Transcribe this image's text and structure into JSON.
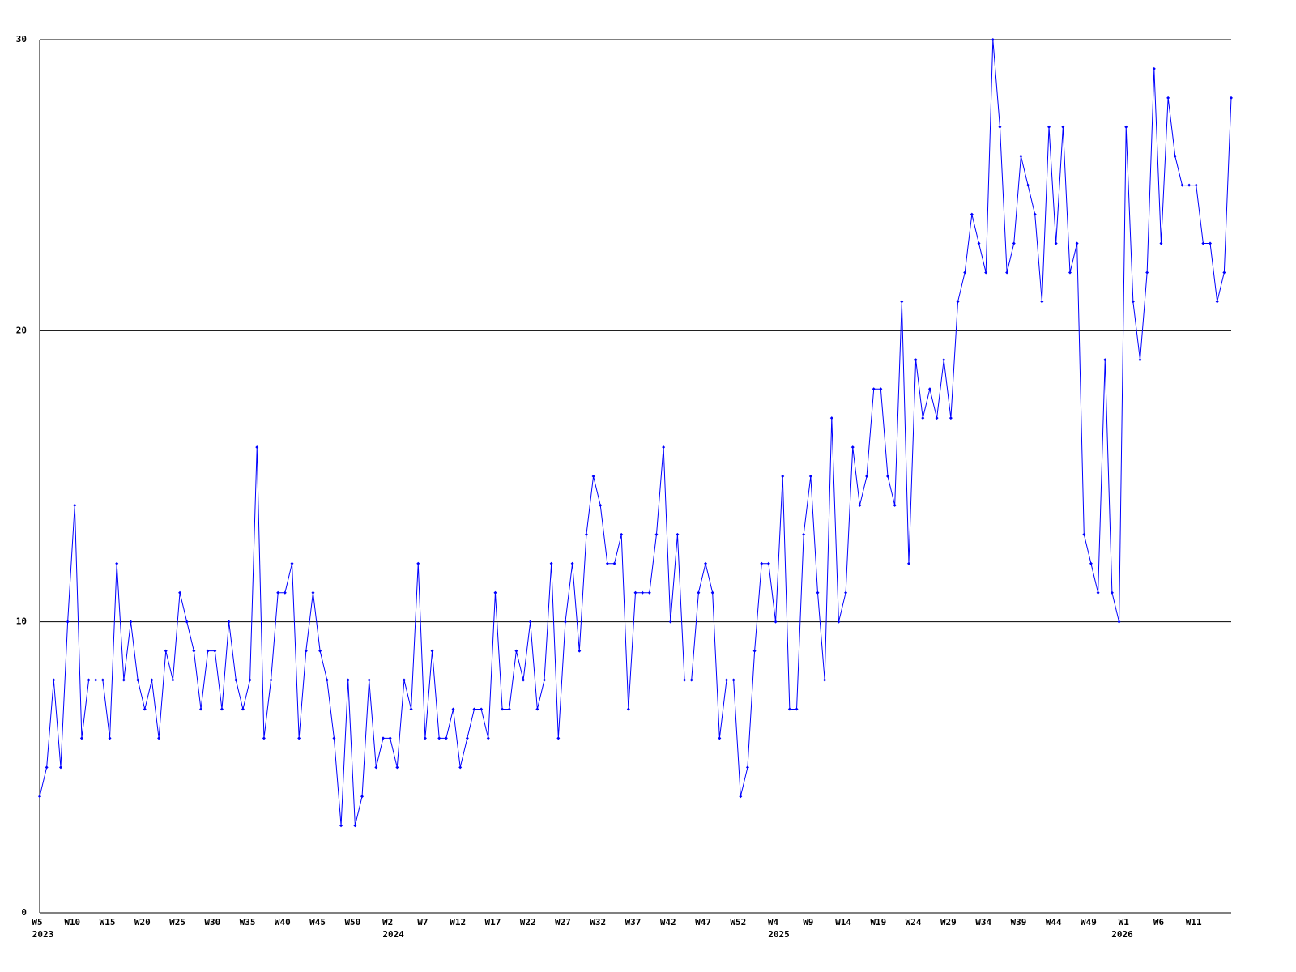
{
  "chart_data": {
    "type": "line",
    "color": "#0000ff",
    "grid": true,
    "ylim": [
      0,
      30
    ],
    "yticks": [
      0,
      10,
      20,
      30
    ],
    "categories": [
      "W5",
      null,
      null,
      null,
      null,
      "W10",
      null,
      null,
      null,
      null,
      "W15",
      null,
      null,
      null,
      null,
      "W20",
      null,
      null,
      null,
      null,
      "W25",
      null,
      null,
      null,
      null,
      "W30",
      null,
      null,
      null,
      null,
      "W35",
      null,
      null,
      null,
      null,
      "W40",
      null,
      null,
      null,
      null,
      "W45",
      null,
      null,
      null,
      null,
      "W50",
      null,
      null,
      null,
      null,
      "W2",
      null,
      null,
      null,
      null,
      "W7",
      null,
      null,
      null,
      null,
      "W12",
      null,
      null,
      null,
      null,
      "W17",
      null,
      null,
      null,
      null,
      "W22",
      null,
      null,
      null,
      null,
      "W27",
      null,
      null,
      null,
      null,
      "W32",
      null,
      null,
      null,
      null,
      "W37",
      null,
      null,
      null,
      null,
      "W42",
      null,
      null,
      null,
      null,
      "W47",
      null,
      null,
      null,
      null,
      "W52",
      null,
      null,
      null,
      null,
      "W4",
      null,
      null,
      null,
      null,
      "W9",
      null,
      null,
      null,
      null,
      "W14",
      null,
      null,
      null,
      null,
      "W19",
      null,
      null,
      null,
      null,
      "W24",
      null,
      null,
      null,
      null,
      "W29",
      null,
      null,
      null,
      null,
      "W34",
      null,
      null,
      null,
      null,
      "W39",
      null,
      null,
      null,
      null,
      "W44",
      null,
      null,
      null,
      null,
      "W49",
      null,
      null,
      null,
      null,
      "W1",
      null,
      null,
      null,
      null,
      "W6",
      null,
      null,
      null,
      null,
      "W11",
      null,
      null,
      null,
      null,
      null
    ],
    "category_years": [
      "2023",
      null,
      null,
      null,
      null,
      null,
      null,
      null,
      null,
      null,
      null,
      null,
      null,
      null,
      null,
      null,
      null,
      null,
      null,
      null,
      null,
      null,
      null,
      null,
      null,
      null,
      null,
      null,
      null,
      null,
      null,
      null,
      null,
      null,
      null,
      null,
      null,
      null,
      null,
      null,
      null,
      null,
      null,
      null,
      null,
      null,
      null,
      null,
      null,
      null,
      "2024",
      null,
      null,
      null,
      null,
      null,
      null,
      null,
      null,
      null,
      null,
      null,
      null,
      null,
      null,
      null,
      null,
      null,
      null,
      null,
      null,
      null,
      null,
      null,
      null,
      null,
      null,
      null,
      null,
      null,
      null,
      null,
      null,
      null,
      null,
      null,
      null,
      null,
      null,
      null,
      null,
      null,
      null,
      null,
      null,
      null,
      null,
      null,
      null,
      null,
      null,
      null,
      null,
      null,
      null,
      "2025",
      null,
      null,
      null,
      null,
      null,
      null,
      null,
      null,
      null,
      null,
      null,
      null,
      null,
      null,
      null,
      null,
      null,
      null,
      null,
      null,
      null,
      null,
      null,
      null,
      null,
      null,
      null,
      null,
      null,
      null,
      null,
      null,
      null,
      null,
      null,
      null,
      null,
      null,
      null,
      null,
      null,
      null,
      null,
      null,
      null,
      null,
      null,
      null,
      "2026",
      null,
      null,
      null,
      null,
      null,
      null,
      null,
      null,
      null,
      null,
      null,
      null,
      null,
      null,
      null
    ],
    "values": [
      4,
      5,
      8,
      5,
      10,
      14,
      6,
      8,
      8,
      8,
      6,
      12,
      8,
      10,
      8,
      7,
      8,
      6,
      9,
      8,
      11,
      10,
      9,
      7,
      9,
      9,
      7,
      10,
      8,
      7,
      8,
      16,
      6,
      8,
      11,
      11,
      12,
      6,
      9,
      11,
      9,
      8,
      6,
      3,
      8,
      3,
      4,
      8,
      5,
      6,
      6,
      5,
      8,
      7,
      12,
      6,
      9,
      6,
      6,
      7,
      5,
      6,
      7,
      7,
      6,
      11,
      7,
      7,
      9,
      8,
      10,
      7,
      8,
      12,
      6,
      10,
      12,
      9,
      13,
      15,
      14,
      12,
      12,
      13,
      7,
      11,
      11,
      11,
      13,
      16,
      10,
      13,
      8,
      8,
      11,
      12,
      11,
      6,
      8,
      8,
      4,
      5,
      9,
      12,
      12,
      10,
      15,
      7,
      7,
      13,
      15,
      11,
      8,
      17,
      10,
      11,
      16,
      14,
      15,
      18,
      18,
      15,
      14,
      21,
      12,
      19,
      17,
      18,
      17,
      19,
      17,
      21,
      22,
      24,
      23,
      22,
      30,
      27,
      22,
      23,
      26,
      25,
      24,
      21,
      27,
      23,
      27,
      22,
      23,
      13,
      12,
      11,
      19,
      11,
      10,
      27,
      21,
      19,
      22,
      29,
      23,
      28,
      26,
      25,
      25,
      25,
      23,
      23,
      21,
      22,
      28
    ]
  }
}
